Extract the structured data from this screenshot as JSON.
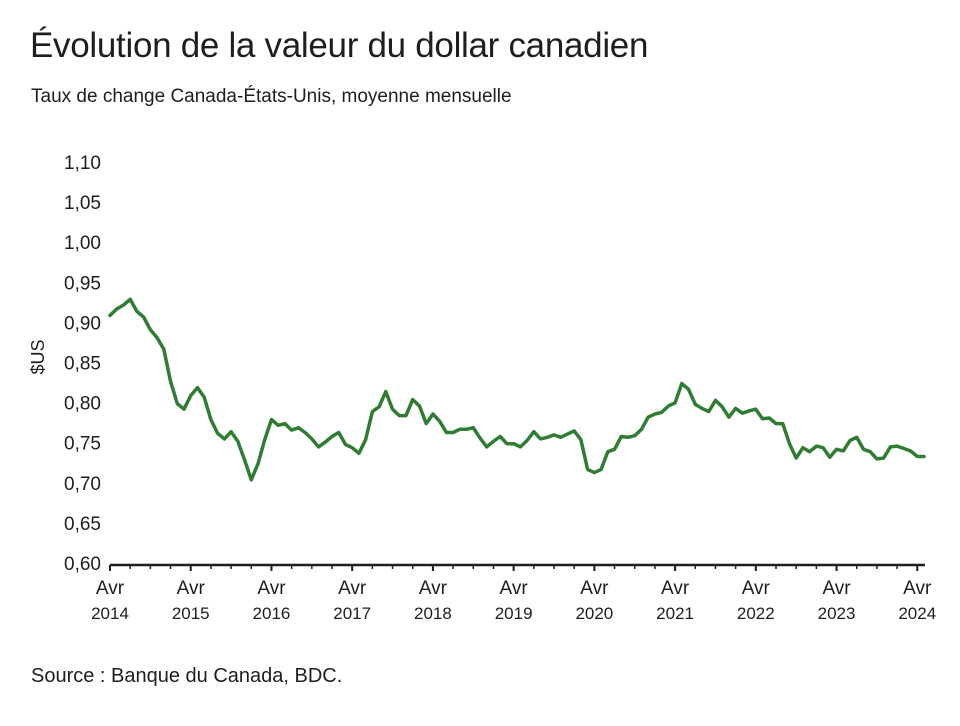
{
  "title": "Évolution de la valeur du dollar canadien",
  "subtitle": "Taux de change Canada-États-Unis, moyenne mensuelle",
  "source": "Source : Banque du Canada, BDC.",
  "chart_data": {
    "type": "line",
    "title": "Évolution de la valeur du dollar canadien",
    "subtitle": "Taux de change Canada-États-Unis, moyenne mensuelle",
    "xlabel": "",
    "ylabel": "$US",
    "ylim": [
      0.6,
      1.1
    ],
    "yticks": [
      "1,10",
      "1,05",
      "1,00",
      "0,95",
      "0,90",
      "0,85",
      "0,80",
      "0,75",
      "0,70",
      "0,65",
      "0,60"
    ],
    "ytick_values": [
      1.1,
      1.05,
      1.0,
      0.95,
      0.9,
      0.85,
      0.8,
      0.75,
      0.7,
      0.65,
      0.6
    ],
    "xticks": [
      {
        "month": "Avr",
        "year": "2014"
      },
      {
        "month": "Avr",
        "year": "2015"
      },
      {
        "month": "Avr",
        "year": "2016"
      },
      {
        "month": "Avr",
        "year": "2017"
      },
      {
        "month": "Avr",
        "year": "2018"
      },
      {
        "month": "Avr",
        "year": "2019"
      },
      {
        "month": "Avr",
        "year": "2020"
      },
      {
        "month": "Avr",
        "year": "2021"
      },
      {
        "month": "Avr",
        "year": "2022"
      },
      {
        "month": "Avr",
        "year": "2023"
      },
      {
        "month": "Avr",
        "year": "2024"
      }
    ],
    "grid": false,
    "color": "#2e7d32",
    "series": [
      {
        "start": "2014-04",
        "values": [
          0.91,
          0.918,
          0.923,
          0.93,
          0.915,
          0.908,
          0.892,
          0.882,
          0.868,
          0.828,
          0.8,
          0.793,
          0.81,
          0.82,
          0.808,
          0.78,
          0.763,
          0.756,
          0.765,
          0.753,
          0.73,
          0.705,
          0.725,
          0.755,
          0.78,
          0.773,
          0.775,
          0.767,
          0.77,
          0.764,
          0.756,
          0.746,
          0.752,
          0.759,
          0.764,
          0.749,
          0.745,
          0.738,
          0.755,
          0.79,
          0.796,
          0.815,
          0.793,
          0.785,
          0.785,
          0.805,
          0.797,
          0.775,
          0.787,
          0.778,
          0.764,
          0.764,
          0.768,
          0.768,
          0.77,
          0.757,
          0.746,
          0.753,
          0.759,
          0.75,
          0.75,
          0.746,
          0.754,
          0.765,
          0.756,
          0.758,
          0.761,
          0.758,
          0.762,
          0.766,
          0.755,
          0.718,
          0.714,
          0.718,
          0.74,
          0.743,
          0.759,
          0.758,
          0.76,
          0.768,
          0.783,
          0.787,
          0.789,
          0.797,
          0.801,
          0.825,
          0.818,
          0.799,
          0.794,
          0.79,
          0.804,
          0.796,
          0.783,
          0.794,
          0.788,
          0.791,
          0.793,
          0.781,
          0.782,
          0.775,
          0.775,
          0.75,
          0.732,
          0.745,
          0.74,
          0.747,
          0.745,
          0.733,
          0.743,
          0.741,
          0.754,
          0.758,
          0.743,
          0.74,
          0.731,
          0.732,
          0.746,
          0.747,
          0.744,
          0.741,
          0.734,
          0.734
        ]
      }
    ]
  }
}
